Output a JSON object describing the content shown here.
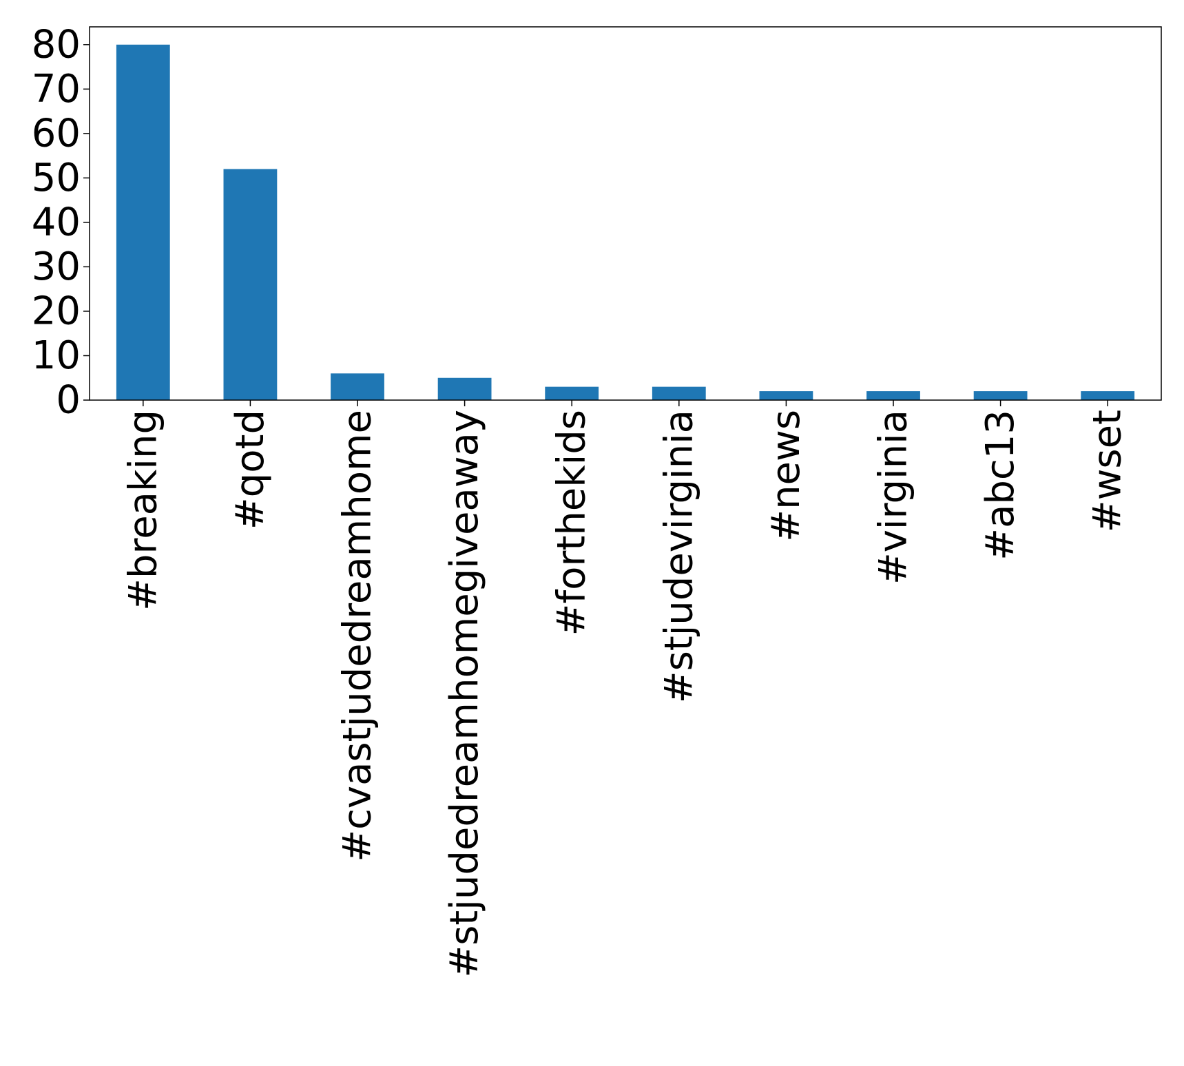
{
  "chart_data": {
    "type": "bar",
    "title": "",
    "xlabel": "",
    "ylabel": "",
    "categories": [
      "#breaking",
      "#qotd",
      "#cvastjudedreamhome",
      "#stjudedreamhomegiveaway",
      "#forthekids",
      "#stjudevirginia",
      "#news",
      "#virginia",
      "#abc13",
      "#wset"
    ],
    "values": [
      80,
      52,
      6,
      5,
      3,
      3,
      2,
      2,
      2,
      2
    ],
    "ylim": [
      0,
      84
    ],
    "yticks": [
      0,
      10,
      20,
      30,
      40,
      50,
      60,
      70,
      80
    ],
    "grid": false,
    "legend": "none",
    "bar_color": "#1f77b4",
    "axis_color": "#000000"
  }
}
